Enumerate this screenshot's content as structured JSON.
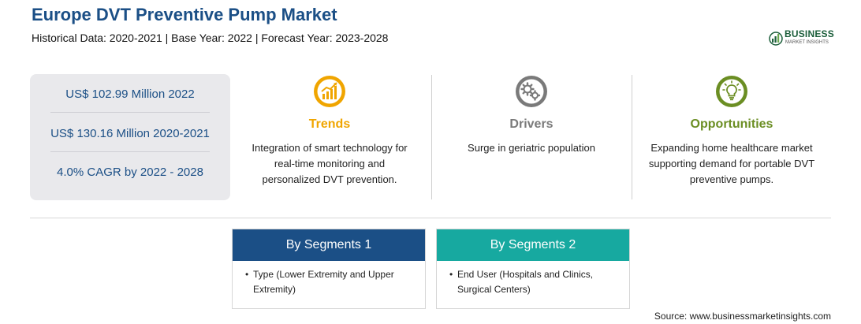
{
  "header": {
    "title": "Europe DVT Preventive Pump Market",
    "subtitle": "Historical Data: 2020-2021 | Base Year: 2022 | Forecast Year: 2023-2028"
  },
  "logo": {
    "name": "BUSINESS",
    "tagline": "MARKET INSIGHTS"
  },
  "stats": [
    "US$ 102.99 Million 2022",
    "US$ 130.16 Million 2020-2021",
    "4.0% CAGR by 2022 - 2028"
  ],
  "columns": [
    {
      "icon": "trend-chart-icon",
      "heading": "Trends",
      "color": "#f0a500",
      "lines": [
        "Integration of smart technology for",
        "real-time monitoring and",
        "personalized DVT prevention."
      ]
    },
    {
      "icon": "gears-icon",
      "heading": "Drivers",
      "color": "#7a7a7a",
      "lines": [
        "Surge in geriatric population"
      ]
    },
    {
      "icon": "lightbulb-icon",
      "heading": "Opportunities",
      "color": "#6b8e23",
      "lines": [
        "Expanding home healthcare market",
        "supporting demand for portable DVT",
        "preventive pumps."
      ]
    }
  ],
  "segments": [
    {
      "title": "By Segments 1",
      "color": "#1b4f86",
      "line1": "Type (Lower Extremity and Upper",
      "line2": "Extremity)"
    },
    {
      "title": "By Segments 2",
      "color": "#17a9a0",
      "line1": "End User (Hospitals and Clinics,",
      "line2": "Surgical Centers)"
    }
  ],
  "source": "Source: www.businessmarketinsights.com"
}
